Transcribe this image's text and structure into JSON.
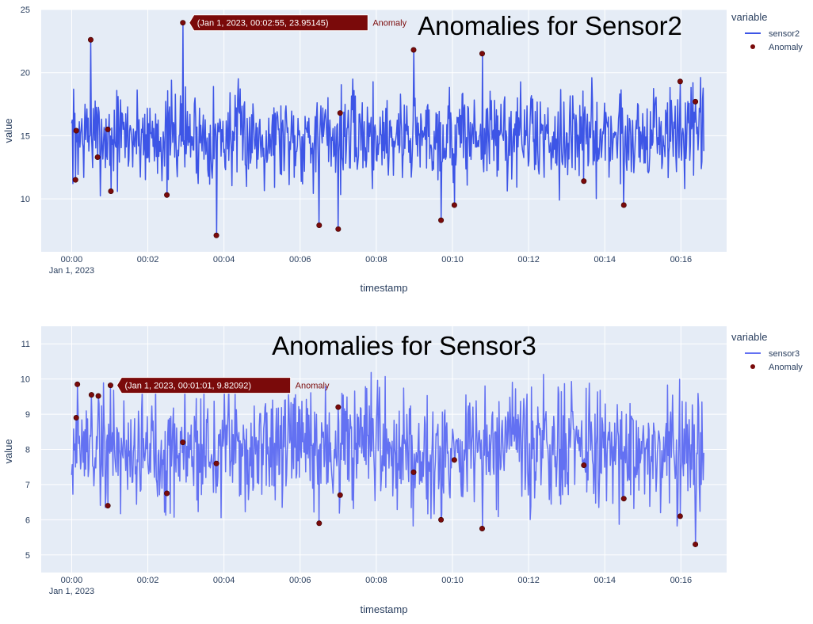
{
  "chart_data": [
    {
      "type": "line",
      "title": "Anomalies for Sensor2",
      "xlabel": "timestamp",
      "ylabel": "value",
      "x_ticks": [
        "00:00",
        "00:02",
        "00:04",
        "00:06",
        "00:08",
        "00:10",
        "00:12",
        "00:14",
        "00:16"
      ],
      "x_tick_sublabel": "Jan 1, 2023",
      "xlim_minutes": [
        -0.8,
        17.2
      ],
      "ylim": [
        5.8,
        25
      ],
      "y_ticks": [
        10,
        15,
        20,
        25
      ],
      "legend": {
        "title": "variable",
        "placement": "right",
        "items": [
          "sensor2",
          "Anomaly"
        ]
      },
      "line_color": "#3d55e6",
      "anomaly_color": "#7a0a0a",
      "noise": {
        "mean": 15,
        "amplitude": 3.5,
        "seed": 7
      },
      "series": [
        {
          "name": "sensor2",
          "x_min": 0,
          "x_max": 16.6,
          "samples": 995
        },
        {
          "name": "Anomaly",
          "points": [
            [
              0.1,
              11.5
            ],
            [
              0.12,
              15.4
            ],
            [
              0.5,
              22.6
            ],
            [
              0.68,
              13.3
            ],
            [
              0.95,
              15.5
            ],
            [
              1.03,
              10.6
            ],
            [
              2.5,
              10.3
            ],
            [
              2.92,
              23.95145
            ],
            [
              3.8,
              7.1
            ],
            [
              6.5,
              7.9
            ],
            [
              7.0,
              7.6
            ],
            [
              7.05,
              16.8
            ],
            [
              8.98,
              21.8
            ],
            [
              9.7,
              8.3
            ],
            [
              10.05,
              9.5
            ],
            [
              10.78,
              21.5
            ],
            [
              13.45,
              11.4
            ],
            [
              14.5,
              9.5
            ],
            [
              15.98,
              19.3
            ],
            [
              16.38,
              17.7
            ]
          ]
        }
      ],
      "tooltip": {
        "text": "(Jan 1, 2023, 00:02:55, 23.95145)",
        "series": "Anomaly",
        "point_index": 7
      }
    },
    {
      "type": "line",
      "title": "Anomalies for Sensor3",
      "xlabel": "timestamp",
      "ylabel": "value",
      "x_ticks": [
        "00:00",
        "00:02",
        "00:04",
        "00:06",
        "00:08",
        "00:10",
        "00:12",
        "00:14",
        "00:16"
      ],
      "x_tick_sublabel": "Jan 1, 2023",
      "xlim_minutes": [
        -0.8,
        17.2
      ],
      "ylim": [
        4.5,
        11.5
      ],
      "y_ticks": [
        5,
        6,
        7,
        8,
        9,
        10,
        11
      ],
      "legend": {
        "title": "variable",
        "placement": "right",
        "items": [
          "sensor3",
          "Anomaly"
        ]
      },
      "line_color": "#6371f2",
      "anomaly_color": "#7a0a0a",
      "noise": {
        "mean": 8,
        "amplitude": 1.6,
        "seed": 19
      },
      "series": [
        {
          "name": "sensor3",
          "x_min": 0,
          "x_max": 16.6,
          "samples": 995
        },
        {
          "name": "Anomaly",
          "points": [
            [
              0.12,
              8.9
            ],
            [
              0.15,
              9.85
            ],
            [
              0.52,
              9.55
            ],
            [
              0.7,
              9.52
            ],
            [
              0.95,
              6.4
            ],
            [
              1.02,
              9.82092
            ],
            [
              2.5,
              6.75
            ],
            [
              2.92,
              8.2
            ],
            [
              3.8,
              7.6
            ],
            [
              6.5,
              5.9
            ],
            [
              7.0,
              9.2
            ],
            [
              7.05,
              6.7
            ],
            [
              8.98,
              7.35
            ],
            [
              9.7,
              6.0
            ],
            [
              10.05,
              7.7
            ],
            [
              10.78,
              5.75
            ],
            [
              13.45,
              7.55
            ],
            [
              14.5,
              6.6
            ],
            [
              15.98,
              6.1
            ],
            [
              16.38,
              5.3
            ]
          ]
        }
      ],
      "tooltip": {
        "text": "(Jan 1, 2023, 00:01:01, 9.82092)",
        "series": "Anomaly",
        "point_index": 5
      }
    }
  ]
}
